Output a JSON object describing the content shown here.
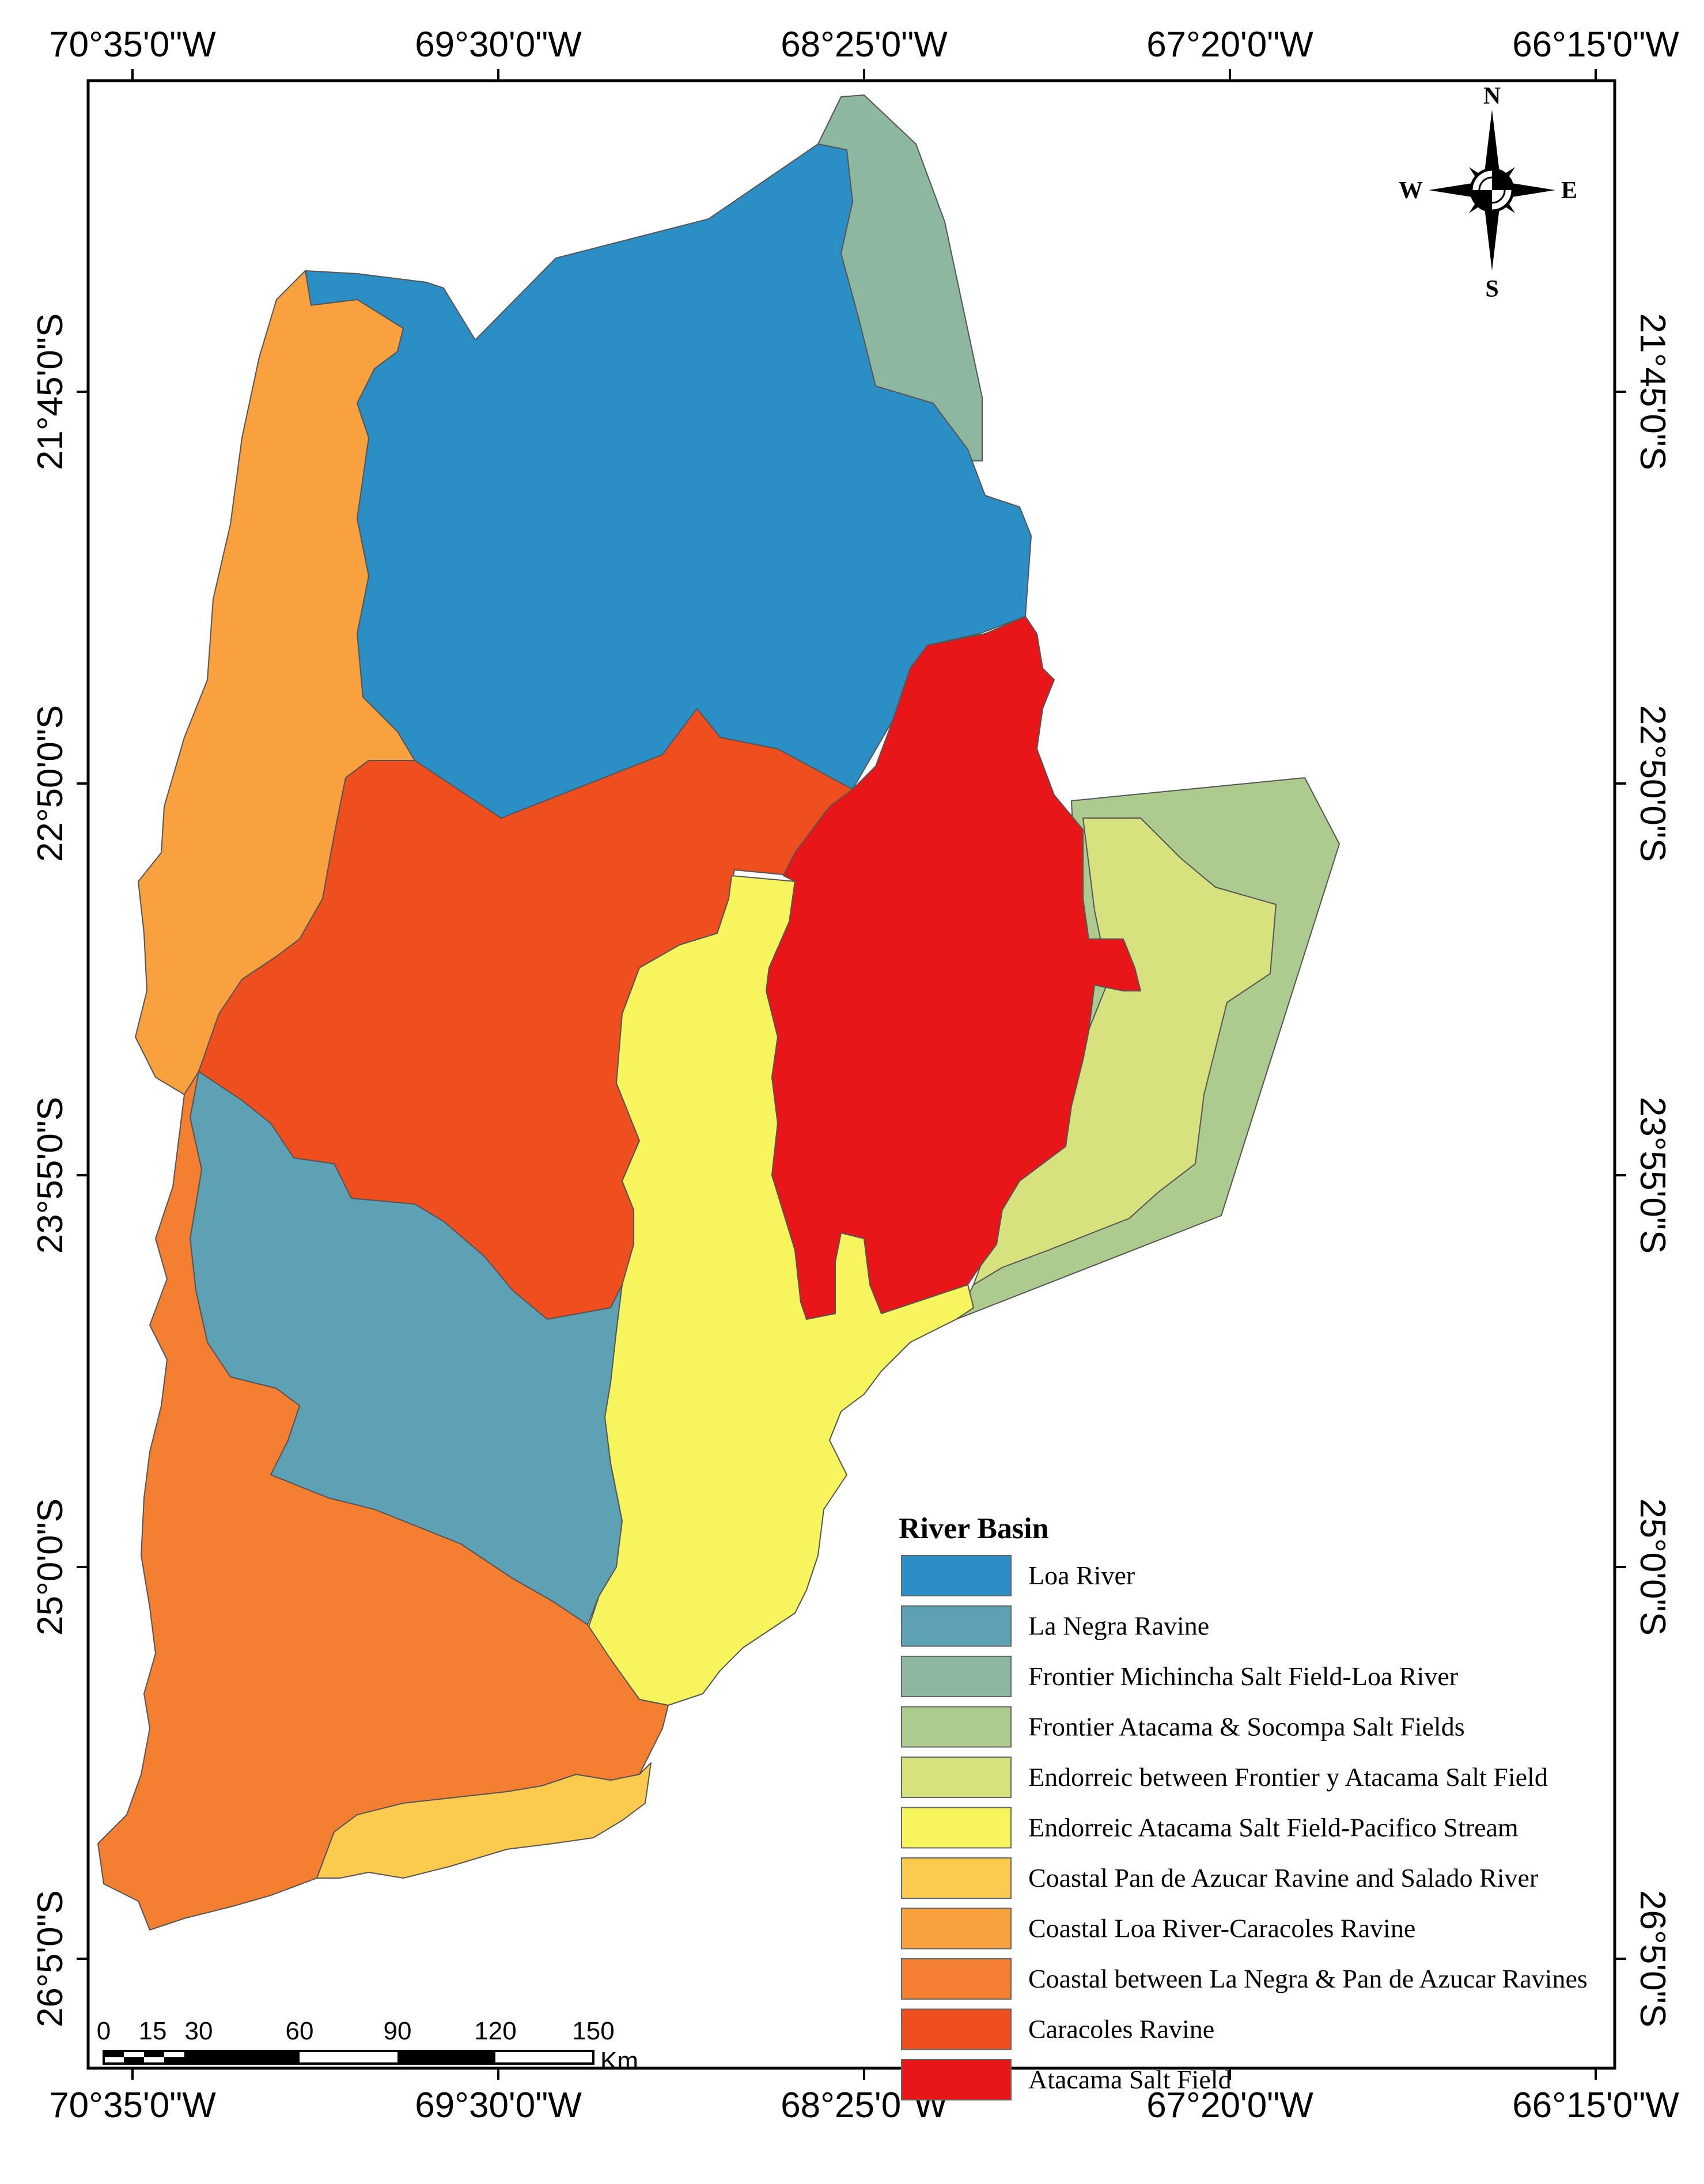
{
  "map": {
    "top_ticks": [
      "70°35'0\"W",
      "69°30'0\"W",
      "68°25'0\"W",
      "67°20'0\"W",
      "66°15'0\"W"
    ],
    "bottom_ticks": [
      "70°35'0\"W",
      "69°30'0\"W",
      "68°25'0\"W",
      "67°20'0\"W",
      "66°15'0\"W"
    ],
    "left_ticks": [
      "21°45'0\"S",
      "22°50'0\"S",
      "23°55'0\"S",
      "25°0'0\"S",
      "26°5'0\"S"
    ],
    "right_ticks": [
      "21°45'0\"S",
      "22°50'0\"S",
      "23°55'0\"S",
      "25°0'0\"S",
      "26°5'0\"S"
    ]
  },
  "compass": {
    "n": "N",
    "s": "S",
    "e": "E",
    "w": "W"
  },
  "scale_bar": {
    "labels": [
      "0",
      "15",
      "30",
      "60",
      "90",
      "120",
      "150"
    ],
    "unit": "Km"
  },
  "legend": {
    "title": "River Basin",
    "items": [
      {
        "key": "loa",
        "label": "Loa River",
        "color": "#2b8fc6"
      },
      {
        "key": "lanegra",
        "label": "La Negra Ravine",
        "color": "#5fa1b4"
      },
      {
        "key": "michincha",
        "label": "Frontier Michincha Salt Field-Loa River",
        "color": "#8db89f"
      },
      {
        "key": "socompa",
        "label": "Frontier Atacama & Socompa Salt Fields",
        "color": "#aecb8f"
      },
      {
        "key": "endofront",
        "label": "Endorreic between Frontier y Atacama Salt Field",
        "color": "#d7e27f"
      },
      {
        "key": "endoatacama",
        "label": "Endorreic Atacama Salt Field-Pacifico Stream",
        "color": "#f7f55e"
      },
      {
        "key": "panazucar",
        "label": "Coastal Pan de Azucar Ravine and Salado River",
        "color": "#fbcb4f"
      },
      {
        "key": "loacaracoles",
        "label": "Coastal Loa River-Caracoles Ravine",
        "color": "#f9a13f"
      },
      {
        "key": "coastnegra",
        "label": "Coastal between La Negra & Pan de Azucar Ravines",
        "color": "#f47f30"
      },
      {
        "key": "caracoles",
        "label": "Caracoles Ravine",
        "color": "#ef4f1f"
      },
      {
        "key": "atacama",
        "label": "Atacama Salt Field",
        "color": "#e81519"
      }
    ]
  }
}
